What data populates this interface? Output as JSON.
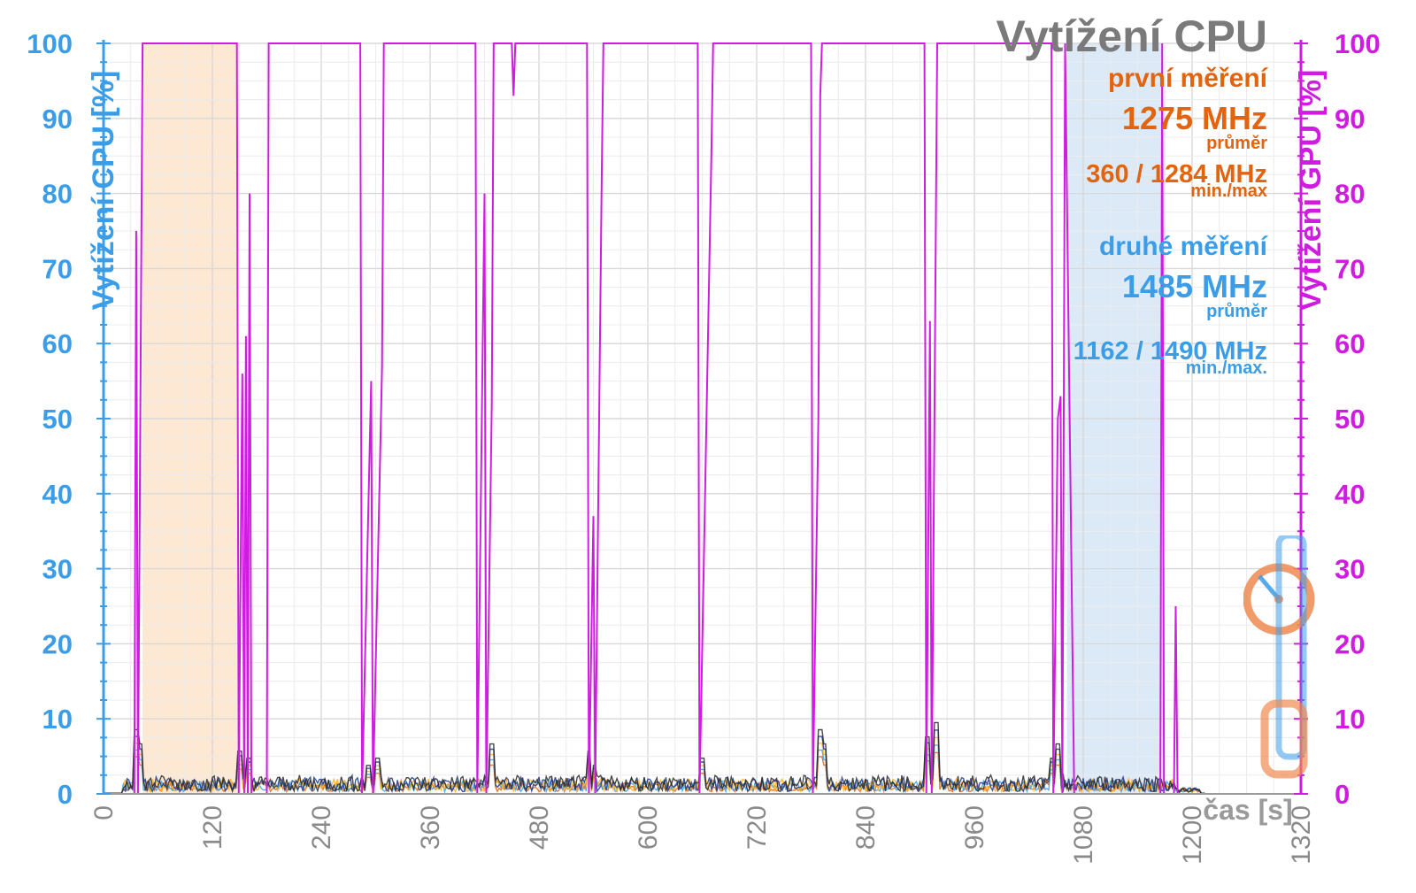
{
  "chart_data": {
    "type": "line",
    "title": "Vytížení CPU",
    "xlabel": "čas [s]",
    "ylabel_left": "Vytížení CPU [%]",
    "ylabel_right": "Vytížení GPU [%]",
    "xlim": [
      0,
      1320
    ],
    "ylim": [
      0,
      100
    ],
    "x_ticks": [
      0,
      120,
      240,
      360,
      480,
      600,
      720,
      840,
      960,
      1080,
      1200,
      1320
    ],
    "y_ticks": [
      0,
      10,
      20,
      30,
      40,
      50,
      60,
      70,
      80,
      90,
      100
    ],
    "grid": true,
    "highlight_regions": [
      {
        "x": [
          43,
          147
        ],
        "color": "#fde8d4"
      },
      {
        "x": [
          1062,
          1168
        ],
        "color": "#dceaf8"
      }
    ],
    "annotations": {
      "first_run": {
        "label": "první měření",
        "avg": "1275 MHz",
        "avg_sub": "průměr",
        "minmax": "360 / 1284 MHz",
        "minmax_sub": "min./max"
      },
      "second_run": {
        "label": "druhé měření",
        "avg": "1485 MHz",
        "avg_sub": "průměr",
        "minmax": "1162 / 1490 MHz",
        "minmax_sub": "min./max."
      }
    },
    "gpu_series": {
      "color": "#d01be0",
      "points": [
        [
          0,
          0
        ],
        [
          34,
          0
        ],
        [
          36,
          75
        ],
        [
          38,
          0
        ],
        [
          40,
          40
        ],
        [
          43,
          100
        ],
        [
          147,
          100
        ],
        [
          149,
          0
        ],
        [
          153,
          56
        ],
        [
          155,
          0
        ],
        [
          157,
          61
        ],
        [
          159,
          0
        ],
        [
          161,
          80
        ],
        [
          163,
          0
        ],
        [
          180,
          0
        ],
        [
          182,
          100
        ],
        [
          283,
          100
        ],
        [
          285,
          0
        ],
        [
          295,
          55
        ],
        [
          297,
          0
        ],
        [
          307,
          57
        ],
        [
          309,
          100
        ],
        [
          410,
          100
        ],
        [
          412,
          0
        ],
        [
          420,
          80
        ],
        [
          422,
          0
        ],
        [
          428,
          52
        ],
        [
          430,
          100
        ],
        [
          450,
          100
        ],
        [
          452,
          93
        ],
        [
          454,
          100
        ],
        [
          533,
          100
        ],
        [
          535,
          0
        ],
        [
          540,
          37
        ],
        [
          542,
          0
        ],
        [
          549,
          80
        ],
        [
          551,
          100
        ],
        [
          655,
          100
        ],
        [
          657,
          0
        ],
        [
          670,
          85
        ],
        [
          672,
          100
        ],
        [
          780,
          100
        ],
        [
          782,
          0
        ],
        [
          788,
          50
        ],
        [
          790,
          93
        ],
        [
          792,
          100
        ],
        [
          905,
          100
        ],
        [
          907,
          0
        ],
        [
          911,
          63
        ],
        [
          913,
          0
        ],
        [
          917,
          67
        ],
        [
          919,
          100
        ],
        [
          1045,
          100
        ],
        [
          1047,
          0
        ],
        [
          1052,
          50
        ],
        [
          1055,
          53
        ],
        [
          1057,
          0
        ],
        [
          1060,
          100
        ],
        [
          1070,
          0
        ],
        [
          1165,
          0
        ],
        [
          1167,
          100
        ],
        [
          1169,
          0
        ],
        [
          1180,
          0
        ],
        [
          1182,
          25
        ],
        [
          1184,
          0
        ],
        [
          1205,
          0
        ]
      ]
    },
    "cpu_series": [
      {
        "color": "#e3640f"
      },
      {
        "color": "#3b9de8"
      },
      {
        "color": "#ffb020"
      },
      {
        "color": "#1e3a8a"
      },
      {
        "color": "#2a2a2a"
      }
    ]
  }
}
